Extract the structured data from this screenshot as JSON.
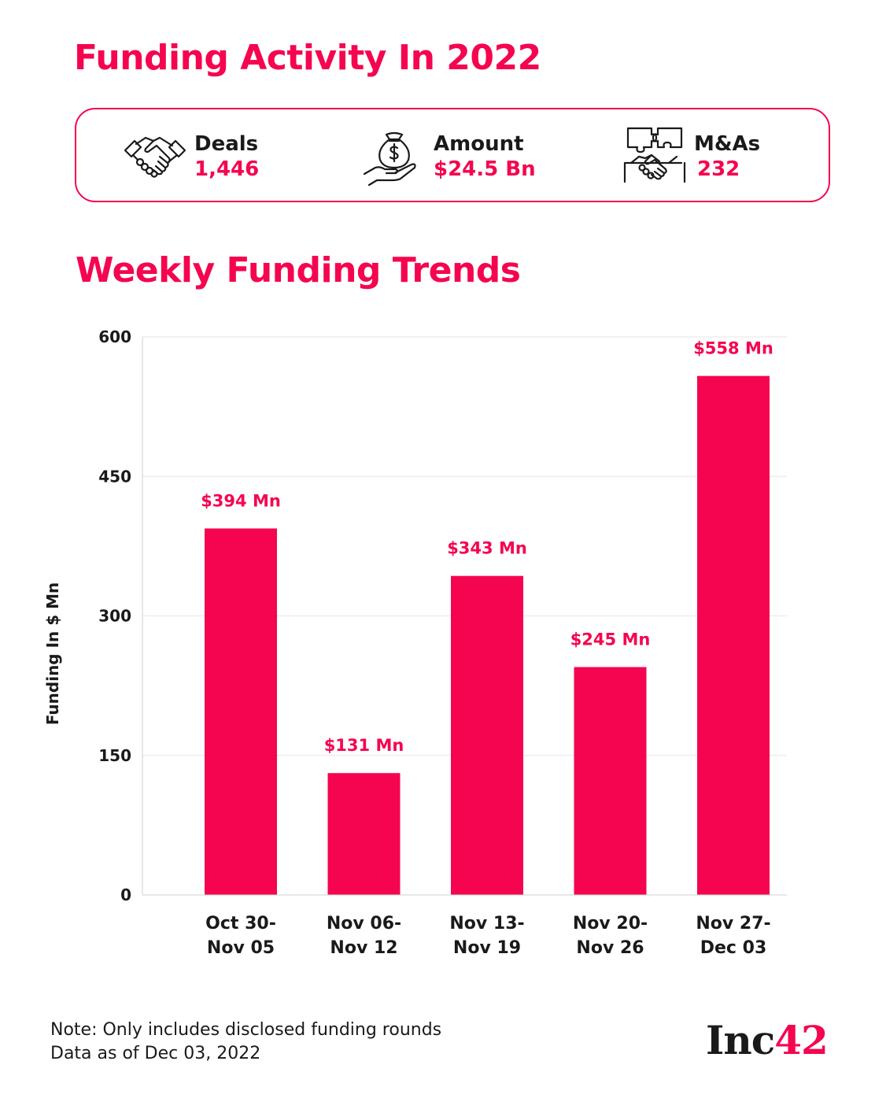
{
  "header": {
    "title": "Funding Activity In 2022"
  },
  "stats": [
    {
      "icon": "handshake-icon",
      "label": "Deals",
      "value": "1,446"
    },
    {
      "icon": "money-bag-hand-icon",
      "label": "Amount",
      "value": "$24.5 Bn"
    },
    {
      "icon": "puzzle-handshake-icon",
      "label": "M&As",
      "value": "232"
    }
  ],
  "section": {
    "title": "Weekly Funding Trends"
  },
  "colors": {
    "accent": "#f5054f",
    "text": "#1a1a1a",
    "grid": "#e6e6e6"
  },
  "chart_data": {
    "type": "bar",
    "title": "Weekly Funding Trends",
    "xlabel": "",
    "ylabel": "Funding In $ Mn",
    "ylim": [
      0,
      600
    ],
    "yticks": [
      0,
      150,
      300,
      450,
      600
    ],
    "grid": true,
    "categories": [
      [
        "Oct 30-",
        "Nov 05"
      ],
      [
        "Nov 06-",
        "Nov 12"
      ],
      [
        "Nov 13-",
        "Nov 19"
      ],
      [
        "Nov 20-",
        "Nov 26"
      ],
      [
        "Nov 27-",
        "Dec 03"
      ]
    ],
    "values": [
      394,
      131,
      343,
      245,
      558
    ],
    "data_labels": [
      "$394 Mn",
      "$131 Mn",
      "$343 Mn",
      "$245 Mn",
      "$558 Mn"
    ]
  },
  "footer": {
    "note_line1": "Note: Only includes disclosed funding rounds",
    "note_line2": "Data as of Dec 03, 2022",
    "logo_text": "Inc",
    "logo_number": "42"
  }
}
